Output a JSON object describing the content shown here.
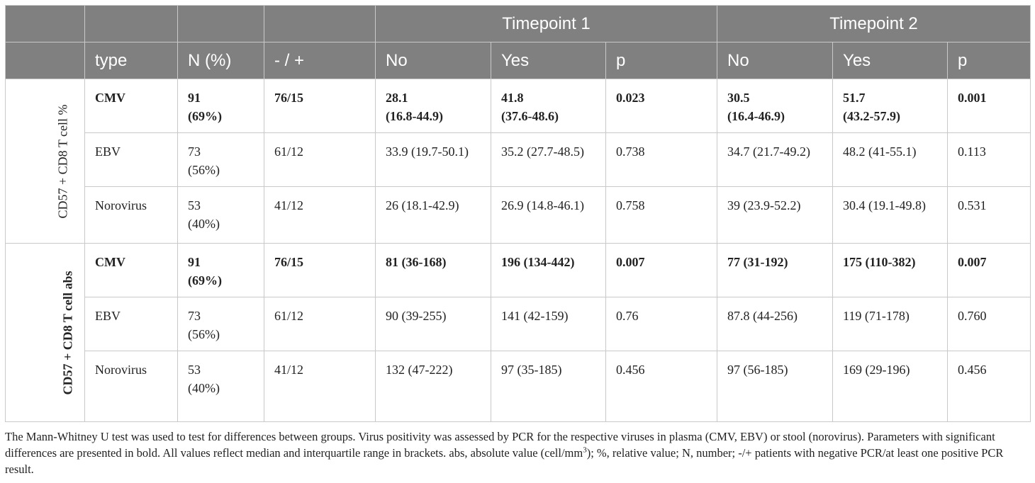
{
  "header": {
    "timepoint1": "Timepoint 1",
    "timepoint2": "Timepoint 2",
    "type": "type",
    "n": "N (%)",
    "neg_pos": "- / +",
    "no1": "No",
    "yes1": "Yes",
    "p1": "p",
    "no2": "No",
    "yes2": "Yes",
    "p2": "p"
  },
  "groups": [
    {
      "label": "CD57 + CD8 T cell %",
      "rows": [
        {
          "type": "CMV",
          "n1": "91",
          "n2": "(69%)",
          "np": "76/15",
          "t1_no_a": "28.1",
          "t1_no_b": "(16.8-44.9)",
          "t1_yes_a": "41.8",
          "t1_yes_b": "(37.6-48.6)",
          "t1_p": "0.023",
          "t2_no_a": "30.5",
          "t2_no_b": "(16.4-46.9)",
          "t2_yes_a": "51.7",
          "t2_yes_b": "(43.2-57.9)",
          "t2_p": "0.001"
        },
        {
          "type": "EBV",
          "n1": "73",
          "n2": "(56%)",
          "np": "61/12",
          "t1_no": "33.9 (19.7-50.1)",
          "t1_yes": "35.2 (27.7-48.5)",
          "t1_p": "0.738",
          "t2_no": "34.7 (21.7-49.2)",
          "t2_yes": "48.2 (41-55.1)",
          "t2_p": "0.113"
        },
        {
          "type": "Norovirus",
          "n1": "53",
          "n2": "(40%)",
          "np": "41/12",
          "t1_no": "26 (18.1-42.9)",
          "t1_yes": "26.9 (14.8-46.1)",
          "t1_p": "0.758",
          "t2_no": "39 (23.9-52.2)",
          "t2_yes": "30.4 (19.1-49.8)",
          "t2_p": "0.531"
        }
      ]
    },
    {
      "label": "CD57 + CD8 T cell abs",
      "rows": [
        {
          "type": "CMV",
          "n1": "91",
          "n2": "(69%)",
          "np": "76/15",
          "t1_no": "81 (36-168)",
          "t1_yes": "196 (134-442)",
          "t1_p": "0.007",
          "t2_no": "77 (31-192)",
          "t2_yes": "175 (110-382)",
          "t2_p": "0.007"
        },
        {
          "type": "EBV",
          "n1": "73",
          "n2": "(56%)",
          "np": "61/12",
          "t1_no": "90 (39-255)",
          "t1_yes": "141 (42-159)",
          "t1_p": "0.76",
          "t2_no": "87.8 (44-256)",
          "t2_yes": "119 (71-178)",
          "t2_p": "0.760"
        },
        {
          "type": "Norovirus",
          "n1": "53",
          "n2": "(40%)",
          "np": "41/12",
          "t1_no": "132 (47-222)",
          "t1_yes": "97 (35-185)",
          "t1_p": "0.456",
          "t2_no": "97 (56-185)",
          "t2_yes": "169 (29-196)",
          "t2_p": "0.456"
        }
      ]
    }
  ],
  "footnote": {
    "before_sup": "The Mann-Whitney U test was used to test for differences between groups. Virus positivity was assessed by PCR for the respective viruses in plasma (CMV, EBV) or stool (norovirus). Parameters with significant differences are presented in bold. All values reflect median and interquartile range in brackets. abs, absolute value (cell/mm",
    "sup": "3",
    "after_sup": "); %, relative value; N, number; -/+ patients with negative PCR/at least one positive PCR result."
  }
}
